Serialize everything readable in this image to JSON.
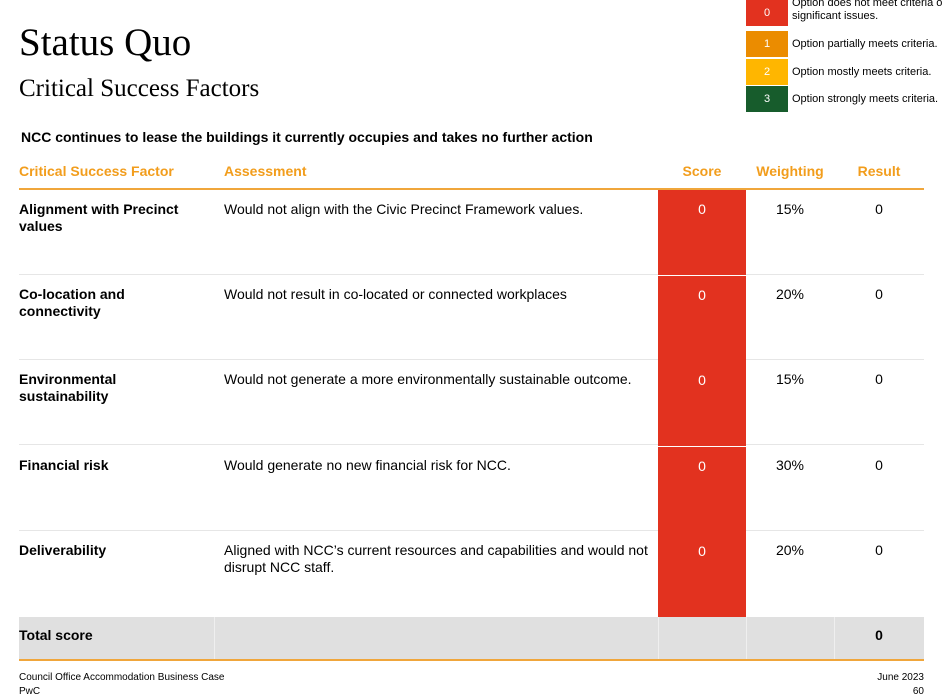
{
  "header": {
    "title": "Status Quo",
    "subtitle": "Critical Success Factors"
  },
  "legend": [
    {
      "score": "0",
      "text": "Option does not meet criteria or significant issues.",
      "color": "#e2321f"
    },
    {
      "score": "1",
      "text": "Option partially meets criteria.",
      "color": "#eb8c00"
    },
    {
      "score": "2",
      "text": "Option mostly meets criteria.",
      "color": "#ffb600"
    },
    {
      "score": "3",
      "text": "Option strongly meets criteria.",
      "color": "#175c2c"
    }
  ],
  "description": "NCC continues to lease the buildings it currently occupies and takes no further action",
  "table": {
    "columns": {
      "factor": "Critical Success Factor",
      "assessment": "Assessment",
      "score": "Score",
      "weighting": "Weighting",
      "result": "Result"
    },
    "rows": [
      {
        "factor": "Alignment with Precinct values",
        "assessment": "Would not align with the Civic Precinct Framework values.",
        "score": "0",
        "weighting": "15%",
        "result": "0"
      },
      {
        "factor": "Co-location and connectivity",
        "assessment": "Would not result in co-located or connected workplaces",
        "score": "0",
        "weighting": "20%",
        "result": "0"
      },
      {
        "factor": "Environmental sustainability",
        "assessment": "Would not generate a more environmentally sustainable outcome.",
        "score": "0",
        "weighting": "15%",
        "result": "0"
      },
      {
        "factor": "Financial risk",
        "assessment": "Would generate no new financial risk for NCC.",
        "score": "0",
        "weighting": "30%",
        "result": "0"
      },
      {
        "factor": "Deliverability",
        "assessment": "Aligned with NCC’s current resources and capabilities and would not disrupt NCC staff.",
        "score": "0",
        "weighting": "20%",
        "result": "0"
      }
    ],
    "total": {
      "label": "Total score",
      "value": "0"
    }
  },
  "footer": {
    "left": "Council Office Accommodation Business Case",
    "right": "June 2023",
    "left2": "PwC",
    "right2": "60"
  },
  "colors": {
    "accent": "#f29d1c",
    "score_zero": "#e2321f"
  }
}
